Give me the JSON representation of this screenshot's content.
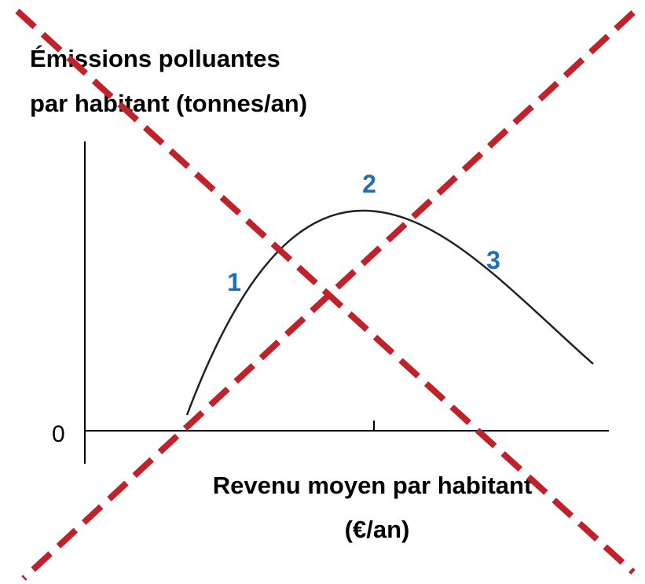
{
  "y_axis_label": [
    "Émissions polluantes",
    "par habitant (tonnes/an)"
  ],
  "origin_label": "0",
  "x_axis_label": [
    "Revenu moyen par habitant",
    "(€/an)"
  ],
  "phase_labels": [
    "1",
    "2",
    "3"
  ]
}
